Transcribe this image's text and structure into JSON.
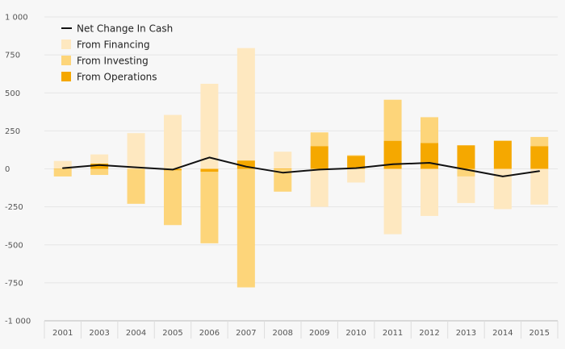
{
  "chart_data": {
    "type": "bar",
    "stacked": true,
    "categories": [
      "2001",
      "2003",
      "2004",
      "2005",
      "2006",
      "2007",
      "2008",
      "2009",
      "2010",
      "2011",
      "2012",
      "2013",
      "2014",
      "2015"
    ],
    "ylim": [
      -1000,
      1000
    ],
    "yticks": [
      -1000,
      -750,
      -500,
      -250,
      0,
      250,
      500,
      750,
      1000
    ],
    "ytick_labels": [
      "-1 000",
      "-750",
      "-500",
      "-250",
      "0",
      "250",
      "500",
      "750",
      "1 000"
    ],
    "grid": true,
    "legend_position": "top-left",
    "series": [
      {
        "name": "From Operations",
        "kind": "bar",
        "color": "#f5a800",
        "values": [
          2,
          35,
          0,
          -10,
          -20,
          55,
          3,
          150,
          85,
          185,
          170,
          155,
          185,
          150
        ]
      },
      {
        "name": "From Investing",
        "kind": "bar",
        "color": "#fdd57a",
        "values": [
          -50,
          -40,
          -230,
          -360,
          -470,
          -780,
          -150,
          90,
          5,
          270,
          170,
          -50,
          0,
          60
        ]
      },
      {
        "name": "From Financing",
        "kind": "bar",
        "color": "#fee8c0",
        "values": [
          50,
          60,
          235,
          355,
          560,
          740,
          110,
          -250,
          -90,
          -430,
          -310,
          -175,
          -265,
          -235
        ]
      },
      {
        "name": "Net Change In Cash",
        "kind": "line",
        "color": "#111111",
        "values": [
          5,
          25,
          10,
          -5,
          75,
          15,
          -25,
          -5,
          5,
          30,
          40,
          -5,
          -50,
          -15
        ]
      }
    ]
  }
}
